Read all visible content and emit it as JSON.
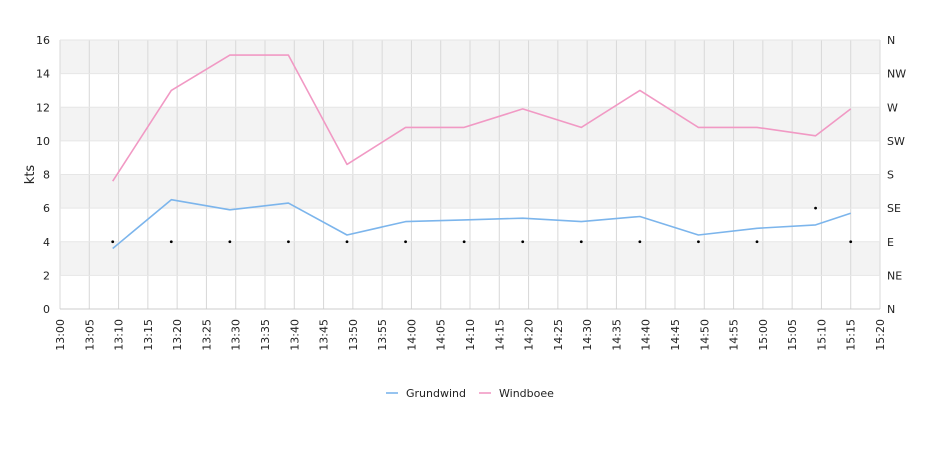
{
  "chart_data": {
    "type": "line",
    "title": "",
    "xlabel": "",
    "ylabel": "kts",
    "ylim": [
      0,
      16
    ],
    "y_ticks": [
      0,
      2,
      4,
      6,
      8,
      10,
      12,
      14,
      16
    ],
    "x_range_minutes": [
      0,
      140
    ],
    "x_tick_labels": [
      "13:00",
      "13:05",
      "13:10",
      "13:15",
      "13:20",
      "13:25",
      "13:30",
      "13:35",
      "13:40",
      "13:45",
      "13:50",
      "13:55",
      "14:00",
      "14:05",
      "14:10",
      "14:15",
      "14:20",
      "14:25",
      "14:30",
      "14:35",
      "14:40",
      "14:45",
      "14:50",
      "14:55",
      "15:00",
      "15:05",
      "15:10",
      "15:15",
      "15:20"
    ],
    "right_axis_labels": [
      "N",
      "NE",
      "E",
      "SE",
      "S",
      "SW",
      "W",
      "NW",
      "N"
    ],
    "grid": true,
    "legend_position": "bottom",
    "x": [
      "13:09",
      "13:19",
      "13:29",
      "13:39",
      "13:49",
      "13:59",
      "14:09",
      "14:19",
      "14:29",
      "14:39",
      "14:49",
      "14:59",
      "15:09",
      "15:15"
    ],
    "series": [
      {
        "name": "Grundwind",
        "color": "#7cb5ec",
        "values": [
          3.6,
          6.5,
          5.9,
          6.3,
          4.4,
          5.2,
          5.3,
          5.4,
          5.2,
          5.5,
          4.4,
          4.8,
          5.0,
          5.7
        ]
      },
      {
        "name": "Windboee",
        "color": "#f199c4",
        "values": [
          7.6,
          13.0,
          15.1,
          15.1,
          8.6,
          10.8,
          10.8,
          11.9,
          10.8,
          13.0,
          10.8,
          10.8,
          10.3,
          11.9
        ]
      }
    ],
    "direction_markers": {
      "x": [
        "13:09",
        "13:19",
        "13:29",
        "13:39",
        "13:49",
        "13:59",
        "14:09",
        "14:19",
        "14:29",
        "14:39",
        "14:49",
        "14:59",
        "15:09",
        "15:15"
      ],
      "values": [
        "E",
        "E",
        "E",
        "E",
        "E",
        "E",
        "E",
        "E",
        "E",
        "E",
        "E",
        "E",
        "SE",
        "E"
      ]
    }
  }
}
